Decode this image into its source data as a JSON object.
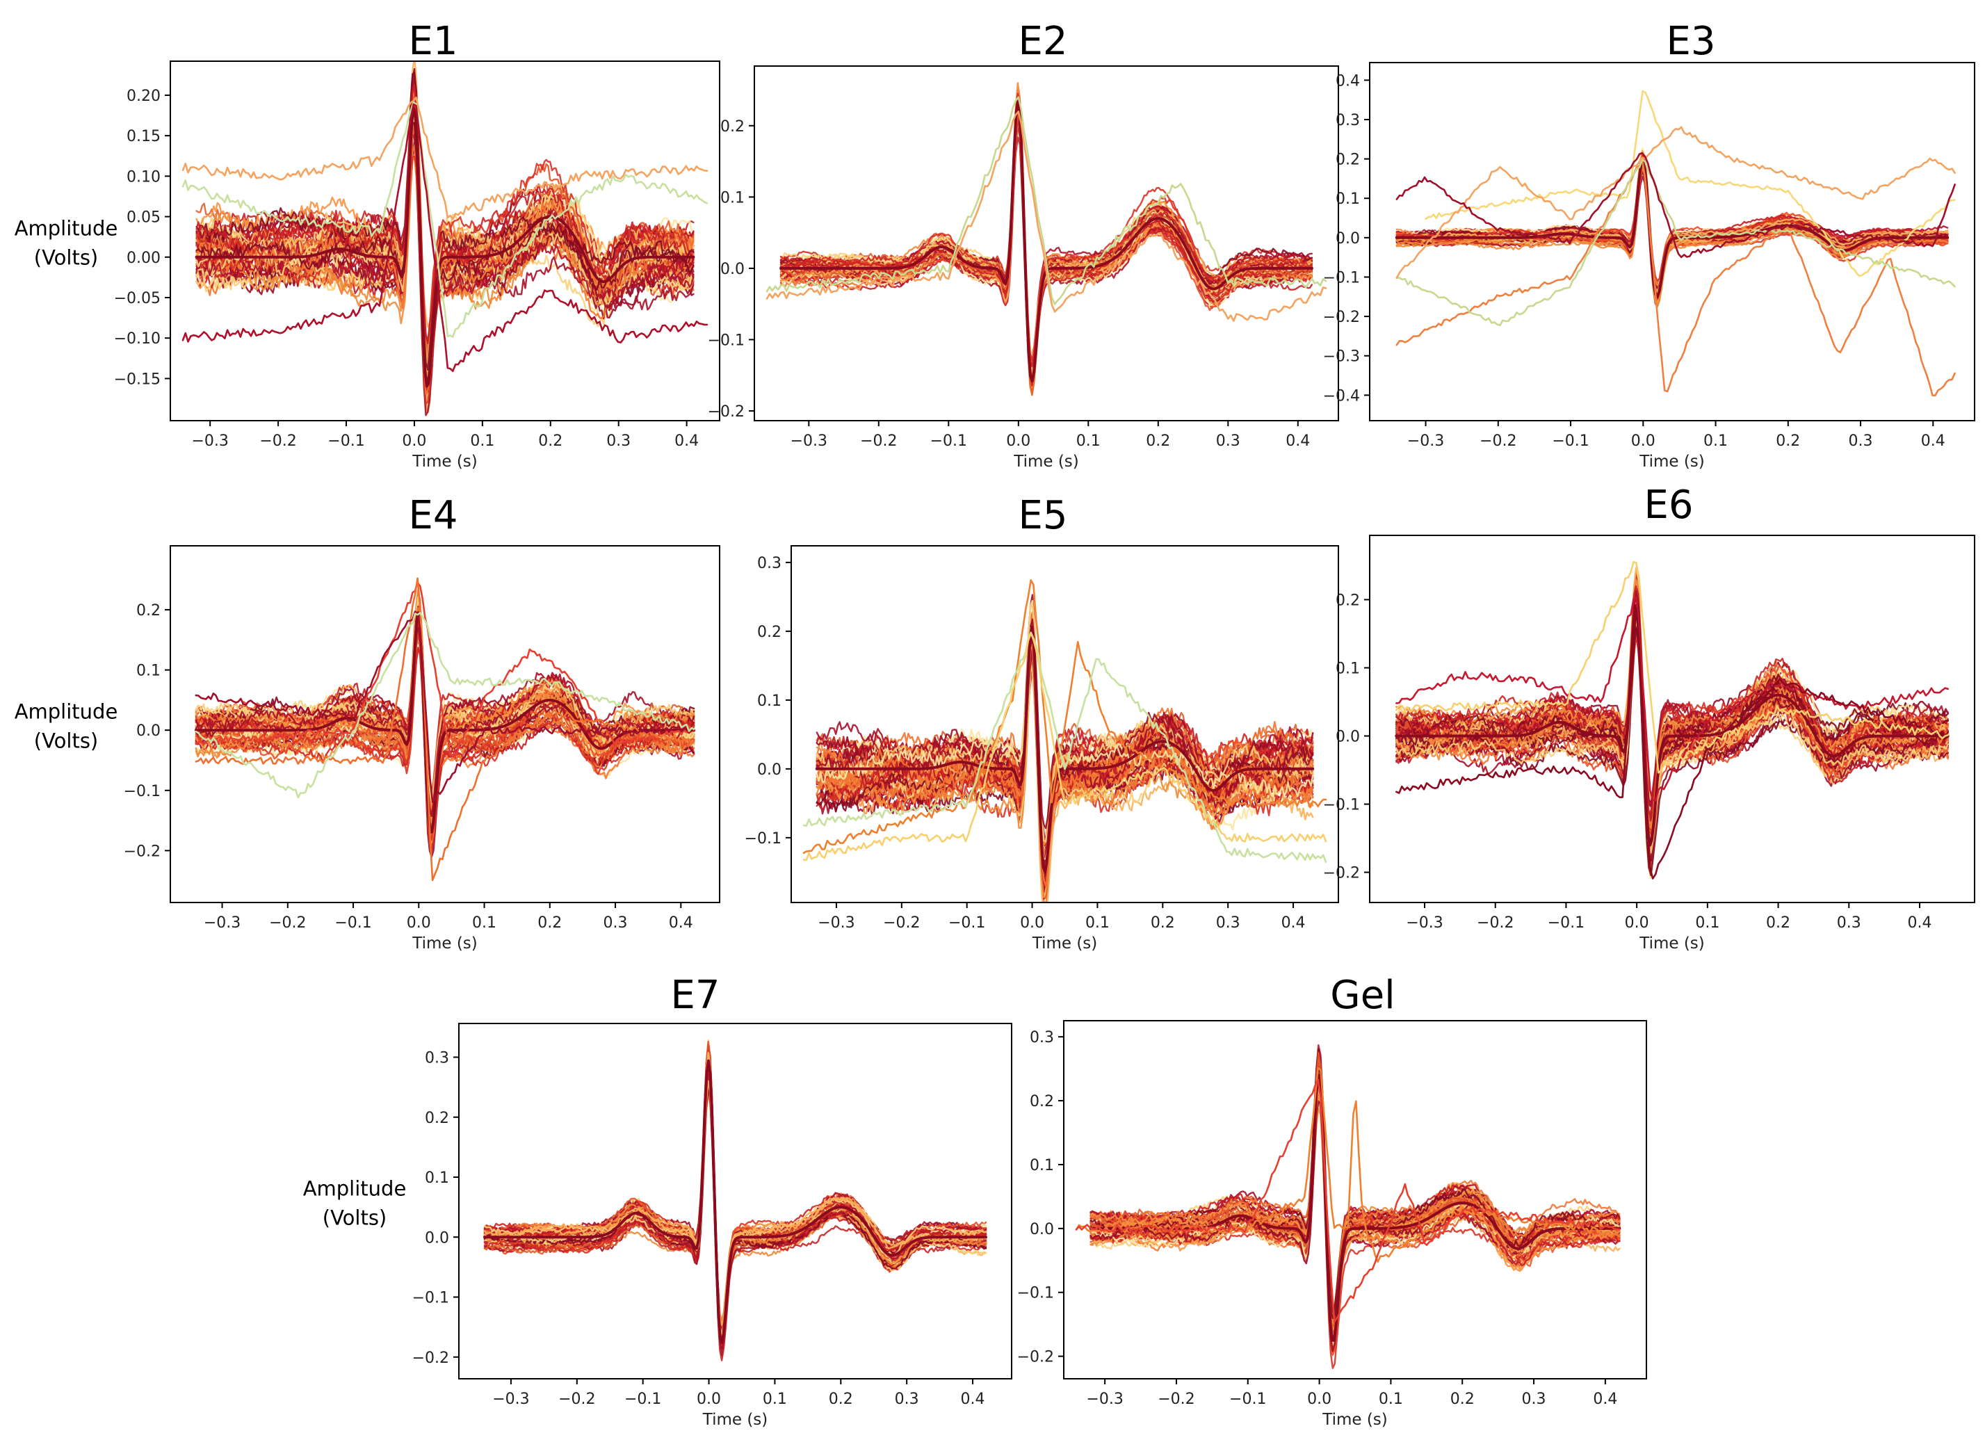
{
  "chart_data": [
    {
      "type": "line",
      "title": "E1",
      "xlabel": "Time (s)",
      "ylabel": "Amplitude\n(Volts)",
      "xlim": [
        -0.34,
        0.43
      ],
      "ylim": [
        -0.19,
        0.23
      ],
      "xticks": [
        -0.3,
        -0.2,
        -0.1,
        0.0,
        0.1,
        0.2,
        0.3,
        0.4
      ],
      "yticks": [
        -0.15,
        -0.1,
        -0.05,
        0.0,
        0.05,
        0.1,
        0.15,
        0.2
      ],
      "xtick_labels": [
        "−0.3",
        "−0.2",
        "−0.1",
        "0.0",
        "0.1",
        "0.2",
        "0.3",
        "0.4"
      ],
      "ytick_labels": [
        "−0.15",
        "−0.10",
        "−0.05",
        "0.00",
        "0.05",
        "0.10",
        "0.15",
        "0.20"
      ],
      "beat": {
        "r_peak": 0.2,
        "s_trough": -0.17,
        "t_wave": 0.05,
        "p_wave": 0.01,
        "noise": 0.035,
        "n_traces": 60
      },
      "outliers": [
        {
          "desc": "orange high pre-beat",
          "x": [
            -0.34,
            -0.2,
            -0.05,
            0.0,
            0.05,
            0.15,
            0.25,
            0.43
          ],
          "y": [
            0.11,
            0.1,
            0.12,
            0.2,
            0.05,
            0.08,
            0.1,
            0.11
          ],
          "color": "#f4a460"
        },
        {
          "desc": "light green end",
          "x": [
            -0.34,
            -0.2,
            -0.05,
            0.0,
            0.05,
            0.2,
            0.3,
            0.43
          ],
          "y": [
            0.09,
            0.05,
            0.03,
            0.2,
            -0.1,
            0.05,
            0.1,
            0.07
          ],
          "color": "#c8e0a0"
        },
        {
          "desc": "crimson low",
          "x": [
            -0.34,
            -0.2,
            -0.05,
            0.0,
            0.05,
            0.2,
            0.3,
            0.43
          ],
          "y": [
            -0.1,
            -0.09,
            -0.06,
            0.2,
            -0.14,
            -0.04,
            -0.1,
            -0.08
          ],
          "color": "#b00f2a"
        }
      ]
    },
    {
      "type": "line",
      "title": "E2",
      "xlabel": "Time (s)",
      "ylabel": "",
      "xlim": [
        -0.36,
        0.44
      ],
      "ylim": [
        -0.2,
        0.27
      ],
      "xticks": [
        -0.3,
        -0.2,
        -0.1,
        0.0,
        0.1,
        0.2,
        0.3,
        0.4
      ],
      "yticks": [
        -0.2,
        -0.1,
        0.0,
        0.1,
        0.2
      ],
      "xtick_labels": [
        "−0.3",
        "−0.2",
        "−0.1",
        "0.0",
        "0.1",
        "0.2",
        "0.3",
        "0.4"
      ],
      "ytick_labels": [
        "−0.2",
        "−0.1",
        "0.0",
        "0.1",
        "0.2"
      ],
      "beat": {
        "r_peak": 0.25,
        "s_trough": -0.17,
        "t_wave": 0.07,
        "p_wave": 0.03,
        "noise": 0.015,
        "n_traces": 60
      },
      "outliers": [
        {
          "desc": "green T bump",
          "x": [
            -0.36,
            -0.1,
            0.0,
            0.05,
            0.15,
            0.23,
            0.3,
            0.44
          ],
          "y": [
            -0.03,
            0.0,
            0.24,
            -0.05,
            0.05,
            0.12,
            -0.02,
            -0.02
          ],
          "color": "#c8d890"
        },
        {
          "desc": "orange dip",
          "x": [
            -0.36,
            -0.1,
            0.0,
            0.05,
            0.2,
            0.3,
            0.35,
            0.44
          ],
          "y": [
            -0.04,
            -0.01,
            0.22,
            -0.06,
            0.05,
            -0.07,
            -0.07,
            -0.03
          ],
          "color": "#f4a460"
        }
      ]
    },
    {
      "type": "line",
      "title": "E3",
      "xlabel": "Time (s)",
      "ylabel": "",
      "xlim": [
        -0.36,
        0.44
      ],
      "ylim": [
        -0.44,
        0.42
      ],
      "xticks": [
        -0.3,
        -0.2,
        -0.1,
        0.0,
        0.1,
        0.2,
        0.3,
        0.4
      ],
      "yticks": [
        -0.4,
        -0.3,
        -0.2,
        -0.1,
        0.0,
        0.1,
        0.2,
        0.3,
        0.4
      ],
      "xtick_labels": [
        "−0.3",
        "−0.2",
        "−0.1",
        "0.0",
        "0.1",
        "0.2",
        "0.3",
        "0.4"
      ],
      "ytick_labels": [
        "−0.4",
        "−0.3",
        "−0.2",
        "−0.1",
        "0.0",
        "0.1",
        "0.2",
        "0.3",
        "0.4"
      ],
      "beat": {
        "r_peak": 0.21,
        "s_trough": -0.16,
        "t_wave": 0.03,
        "p_wave": 0.01,
        "noise": 0.015,
        "n_traces": 60
      },
      "outliers": [
        {
          "desc": "yellow spike",
          "x": [
            -0.3,
            -0.1,
            -0.02,
            0.0,
            0.05,
            0.2,
            0.3,
            0.43
          ],
          "y": [
            0.05,
            0.12,
            0.1,
            0.38,
            0.15,
            0.12,
            -0.1,
            0.1
          ],
          "color": "#f8d878"
        },
        {
          "desc": "orange deep dip",
          "x": [
            -0.34,
            -0.2,
            -0.1,
            0.0,
            0.03,
            0.1,
            0.2,
            0.27,
            0.34,
            0.4,
            0.43
          ],
          "y": [
            -0.27,
            -0.15,
            -0.1,
            0.2,
            -0.4,
            -0.1,
            0.03,
            -0.3,
            -0.05,
            -0.4,
            -0.35
          ],
          "color": "#f08040"
        },
        {
          "desc": "green low",
          "x": [
            -0.34,
            -0.2,
            -0.1,
            0.0,
            0.05,
            0.2,
            0.3,
            0.43
          ],
          "y": [
            -0.1,
            -0.22,
            -0.12,
            0.2,
            0.0,
            0.02,
            -0.05,
            -0.12
          ],
          "color": "#c8d890"
        },
        {
          "desc": "orange arcs",
          "x": [
            -0.34,
            -0.2,
            -0.1,
            0.0,
            0.05,
            0.12,
            0.2,
            0.3,
            0.4,
            0.43
          ],
          "y": [
            -0.1,
            0.18,
            0.05,
            0.2,
            0.28,
            0.2,
            0.16,
            0.1,
            0.2,
            0.17
          ],
          "color": "#f4a460"
        },
        {
          "desc": "crimson",
          "x": [
            -0.34,
            -0.3,
            -0.2,
            -0.1,
            0.0,
            0.05,
            0.2,
            0.4,
            0.43
          ],
          "y": [
            0.1,
            0.15,
            0.02,
            -0.01,
            0.22,
            -0.05,
            0.03,
            -0.02,
            0.14
          ],
          "color": "#a0102a"
        }
      ]
    },
    {
      "type": "line",
      "title": "E4",
      "xlabel": "Time (s)",
      "ylabel": "Amplitude\n(Volts)",
      "xlim": [
        -0.36,
        0.44
      ],
      "ylim": [
        -0.27,
        0.29
      ],
      "xticks": [
        -0.3,
        -0.2,
        -0.1,
        0.0,
        0.1,
        0.2,
        0.3,
        0.4
      ],
      "yticks": [
        -0.2,
        -0.1,
        0.0,
        0.1,
        0.2
      ],
      "xtick_labels": [
        "−0.3",
        "−0.2",
        "−0.1",
        "0.0",
        "0.1",
        "0.2",
        "0.3",
        "0.4"
      ],
      "ytick_labels": [
        "−0.2",
        "−0.1",
        "0.0",
        "0.1",
        "0.2"
      ],
      "beat": {
        "r_peak": 0.21,
        "s_trough": -0.18,
        "t_wave": 0.05,
        "p_wave": 0.02,
        "noise": 0.03,
        "n_traces": 60
      },
      "outliers": [
        {
          "desc": "red hump",
          "x": [
            -0.34,
            -0.1,
            0.0,
            0.05,
            0.1,
            0.17,
            0.22,
            0.3,
            0.42
          ],
          "y": [
            -0.02,
            0.0,
            0.25,
            -0.05,
            0.05,
            0.13,
            0.1,
            -0.02,
            0.0
          ],
          "color": "#e84030"
        },
        {
          "desc": "orange deep",
          "x": [
            -0.34,
            -0.15,
            -0.05,
            0.0,
            0.02,
            0.1,
            0.2,
            0.42
          ],
          "y": [
            -0.05,
            -0.05,
            -0.05,
            0.26,
            -0.25,
            -0.05,
            0.03,
            -0.02
          ],
          "color": "#f07030"
        },
        {
          "desc": "dark red pre",
          "x": [
            -0.34,
            -0.1,
            -0.05,
            0.0,
            0.02,
            0.1,
            0.42
          ],
          "y": [
            0.06,
            0.02,
            0.13,
            0.2,
            -0.12,
            0.0,
            0.0
          ],
          "color": "#a0102a"
        },
        {
          "desc": "green flat",
          "x": [
            -0.34,
            -0.18,
            -0.1,
            0.0,
            0.05,
            0.2,
            0.42
          ],
          "y": [
            0.0,
            -0.11,
            0.0,
            0.2,
            0.08,
            0.08,
            0.0
          ],
          "color": "#c8e0a0"
        }
      ]
    },
    {
      "type": "line",
      "title": "E5",
      "xlabel": "Time (s)",
      "ylabel": "",
      "xlim": [
        -0.35,
        0.45
      ],
      "ylim": [
        -0.18,
        0.31
      ],
      "xticks": [
        -0.3,
        -0.2,
        -0.1,
        0.0,
        0.1,
        0.2,
        0.3,
        0.4
      ],
      "yticks": [
        -0.1,
        0.0,
        0.1,
        0.2,
        0.3
      ],
      "xtick_labels": [
        "−0.3",
        "−0.2",
        "−0.1",
        "0.0",
        "0.1",
        "0.2",
        "0.3",
        "0.4"
      ],
      "ytick_labels": [
        "−0.1",
        "0.0",
        "0.1",
        "0.2",
        "0.3"
      ],
      "beat": {
        "r_peak": 0.22,
        "s_trough": -0.16,
        "t_wave": 0.04,
        "p_wave": 0.01,
        "noise": 0.04,
        "n_traces": 60
      },
      "outliers": [
        {
          "desc": "orange hump",
          "x": [
            -0.35,
            -0.1,
            -0.03,
            0.0,
            0.03,
            0.07,
            0.12,
            0.2,
            0.3,
            0.45
          ],
          "y": [
            -0.12,
            -0.05,
            0.1,
            0.29,
            -0.05,
            0.18,
            0.05,
            0.0,
            -0.05,
            -0.05
          ],
          "color": "#f08030"
        },
        {
          "desc": "green dotted",
          "x": [
            -0.35,
            -0.1,
            0.0,
            0.05,
            0.1,
            0.2,
            0.3,
            0.45
          ],
          "y": [
            -0.08,
            -0.05,
            0.2,
            0.0,
            0.16,
            0.05,
            -0.12,
            -0.13
          ],
          "color": "#c8e0a0"
        },
        {
          "desc": "yellow low",
          "x": [
            -0.35,
            -0.2,
            -0.1,
            0.0,
            0.05,
            0.2,
            0.3,
            0.45
          ],
          "y": [
            -0.13,
            -0.1,
            -0.1,
            0.2,
            -0.05,
            0.0,
            -0.1,
            -0.1
          ],
          "color": "#f8d070"
        }
      ]
    },
    {
      "type": "line",
      "title": "E6",
      "xlabel": "Time (s)",
      "ylabel": "",
      "xlim": [
        -0.36,
        0.46
      ],
      "ylim": [
        -0.23,
        0.28
      ],
      "xticks": [
        -0.3,
        -0.2,
        -0.1,
        0.0,
        0.1,
        0.2,
        0.3,
        0.4
      ],
      "yticks": [
        -0.2,
        -0.1,
        0.0,
        0.1,
        0.2
      ],
      "xtick_labels": [
        "−0.3",
        "−0.2",
        "−0.1",
        "0.0",
        "0.1",
        "0.2",
        "0.3",
        "0.4"
      ],
      "ytick_labels": [
        "−0.2",
        "−0.1",
        "0.0",
        "0.1",
        "0.2"
      ],
      "beat": {
        "r_peak": 0.21,
        "s_trough": -0.17,
        "t_wave": 0.06,
        "p_wave": 0.02,
        "noise": 0.03,
        "n_traces": 60
      },
      "outliers": [
        {
          "desc": "red high pre",
          "x": [
            -0.34,
            -0.25,
            -0.15,
            -0.05,
            0.0,
            0.02,
            0.1,
            0.2,
            0.3,
            0.44
          ],
          "y": [
            0.05,
            0.09,
            0.08,
            0.05,
            0.21,
            -0.1,
            0.02,
            0.08,
            0.04,
            0.07
          ],
          "color": "#c81830"
        },
        {
          "desc": "dark red dip",
          "x": [
            -0.34,
            -0.15,
            -0.08,
            -0.02,
            0.0,
            0.02,
            0.1,
            0.2,
            0.44
          ],
          "y": [
            -0.08,
            -0.05,
            -0.05,
            -0.09,
            0.2,
            -0.22,
            -0.02,
            0.08,
            0.0
          ],
          "color": "#8c0a20"
        },
        {
          "desc": "yellow peak",
          "x": [
            -0.34,
            -0.1,
            0.0,
            0.03,
            0.2,
            0.44
          ],
          "y": [
            0.04,
            0.05,
            0.26,
            -0.05,
            0.04,
            0.0
          ],
          "color": "#f8d070"
        }
      ]
    },
    {
      "type": "line",
      "title": "E7",
      "xlabel": "Time (s)",
      "ylabel": "Amplitude\n(Volts)",
      "xlim": [
        -0.36,
        0.44
      ],
      "ylim": [
        -0.22,
        0.34
      ],
      "xticks": [
        -0.3,
        -0.2,
        -0.1,
        0.0,
        0.1,
        0.2,
        0.3,
        0.4
      ],
      "yticks": [
        -0.2,
        -0.1,
        0.0,
        0.1,
        0.2,
        0.3
      ],
      "xtick_labels": [
        "−0.3",
        "−0.2",
        "−0.1",
        "0.0",
        "0.1",
        "0.2",
        "0.3",
        "0.4"
      ],
      "ytick_labels": [
        "−0.2",
        "−0.1",
        "0.0",
        "0.1",
        "0.2",
        "0.3"
      ],
      "beat": {
        "r_peak": 0.31,
        "s_trough": -0.19,
        "t_wave": 0.05,
        "p_wave": 0.04,
        "noise": 0.015,
        "n_traces": 60
      },
      "outliers": []
    },
    {
      "type": "line",
      "title": "Gel",
      "xlabel": "Time (s)",
      "ylabel": "",
      "xlim": [
        -0.34,
        0.44
      ],
      "ylim": [
        -0.22,
        0.31
      ],
      "xticks": [
        -0.3,
        -0.2,
        -0.1,
        0.0,
        0.1,
        0.2,
        0.3,
        0.4
      ],
      "yticks": [
        -0.2,
        -0.1,
        0.0,
        0.1,
        0.2,
        0.3
      ],
      "xtick_labels": [
        "−0.3",
        "−0.2",
        "−0.1",
        "0.0",
        "0.1",
        "0.2",
        "0.3",
        "0.4"
      ],
      "ytick_labels": [
        "−0.2",
        "−0.1",
        "0.0",
        "0.1",
        "0.2",
        "0.3"
      ],
      "beat": {
        "r_peak": 0.26,
        "s_trough": -0.19,
        "t_wave": 0.04,
        "p_wave": 0.02,
        "noise": 0.02,
        "n_traces": 60
      },
      "outliers": [
        {
          "desc": "orange late beat",
          "x": [
            -0.34,
            -0.1,
            -0.02,
            0.0,
            0.02,
            0.04,
            0.05,
            0.06,
            0.08,
            0.2,
            0.42
          ],
          "y": [
            0.0,
            0.0,
            0.05,
            0.27,
            0.0,
            0.0,
            0.23,
            0.02,
            -0.05,
            0.03,
            -0.01
          ],
          "color": "#f08030"
        },
        {
          "desc": "red bump",
          "x": [
            -0.34,
            -0.1,
            0.0,
            0.02,
            0.08,
            0.12,
            0.15,
            0.2,
            0.42
          ],
          "y": [
            0.0,
            0.0,
            0.24,
            -0.15,
            -0.05,
            0.07,
            -0.03,
            0.03,
            0.0
          ],
          "color": "#e84030"
        }
      ]
    }
  ]
}
